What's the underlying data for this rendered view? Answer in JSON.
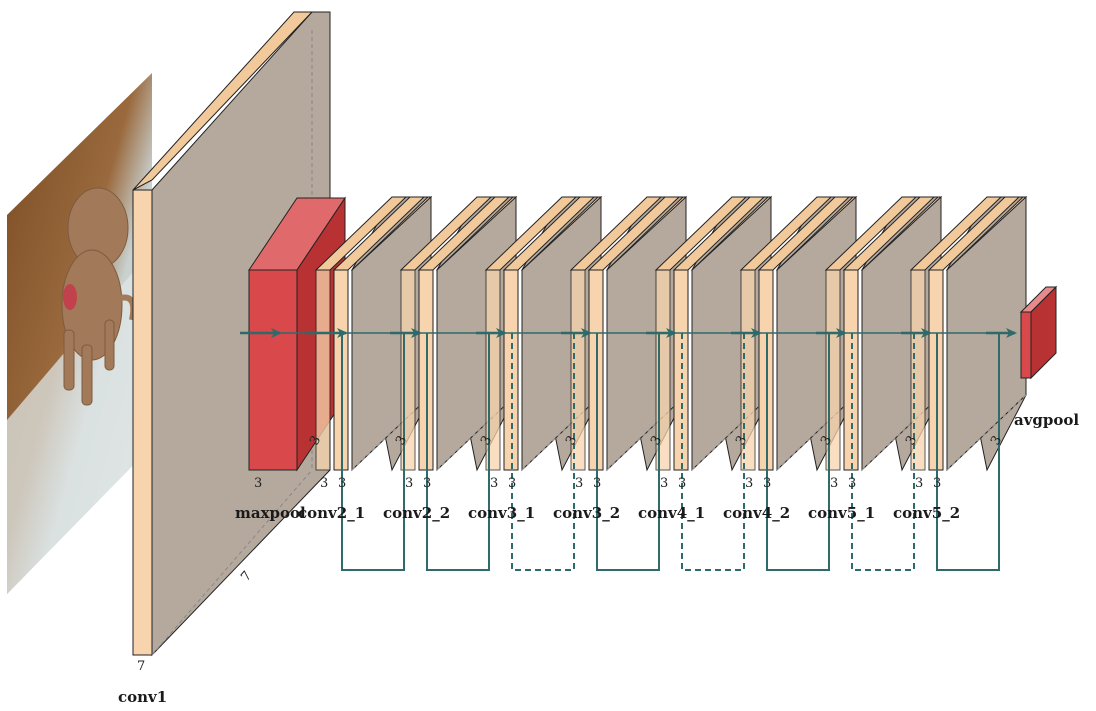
{
  "diagram": {
    "layers": [
      {
        "name": "conv1",
        "label": "conv1",
        "kernel_bottom": "7",
        "kernel_diag": "7"
      },
      {
        "name": "maxpool",
        "label": "maxpool",
        "kernel_bottom": "3",
        "kernel_diag": "3"
      },
      {
        "name": "conv2_1",
        "label": "conv2_1",
        "kernel_bottom": [
          "3",
          "3"
        ],
        "kernel_diag": "3"
      },
      {
        "name": "conv2_2",
        "label": "conv2_2",
        "kernel_bottom": [
          "3",
          "3"
        ],
        "kernel_diag": "3"
      },
      {
        "name": "conv3_1",
        "label": "conv3_1",
        "kernel_bottom": [
          "3",
          "3"
        ],
        "kernel_diag": "3"
      },
      {
        "name": "conv3_2",
        "label": "conv3_2",
        "kernel_bottom": [
          "3",
          "3"
        ],
        "kernel_diag": "3"
      },
      {
        "name": "conv4_1",
        "label": "conv4_1",
        "kernel_bottom": [
          "3",
          "3"
        ],
        "kernel_diag": "3"
      },
      {
        "name": "conv4_2",
        "label": "conv4_2",
        "kernel_bottom": [
          "3",
          "3"
        ],
        "kernel_diag": "3"
      },
      {
        "name": "conv5_1",
        "label": "conv5_1",
        "kernel_bottom": [
          "3",
          "3"
        ],
        "kernel_diag": "3"
      },
      {
        "name": "conv5_2",
        "label": "conv5_2",
        "kernel_bottom": [
          "3",
          "3"
        ],
        "kernel_diag": "3"
      },
      {
        "name": "avgpool",
        "label": "avgpool"
      }
    ],
    "skip_connections": [
      {
        "from": "conv2_1",
        "style": "solid"
      },
      {
        "from": "conv2_2",
        "style": "solid"
      },
      {
        "from": "conv3_1",
        "style": "dashed"
      },
      {
        "from": "conv3_2",
        "style": "solid"
      },
      {
        "from": "conv4_1",
        "style": "dashed"
      },
      {
        "from": "conv4_2",
        "style": "solid"
      },
      {
        "from": "conv5_1",
        "style": "dashed"
      },
      {
        "from": "conv5_2",
        "style": "solid"
      }
    ],
    "input_image": "photo of a curly-haired dog",
    "colors": {
      "conv_face": "#b5a99d",
      "conv_side": "#f7d4ad",
      "conv_top": "#f2c99b",
      "pool_red": "#d9484a",
      "pool_red_side": "#b83233",
      "arrow_teal": "#2f6b6b",
      "edge": "#222222"
    }
  }
}
